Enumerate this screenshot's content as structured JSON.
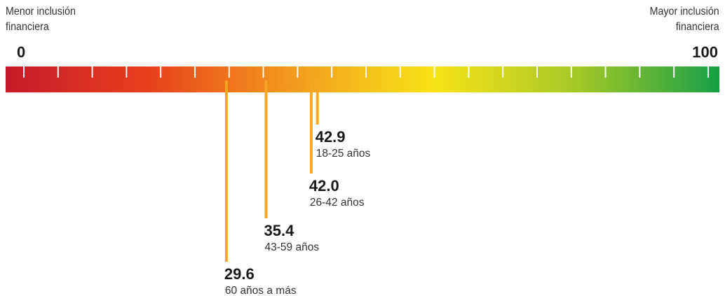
{
  "left_caption": [
    "Menor inclusión",
    "financiera"
  ],
  "right_caption": [
    "Mayor inclusión",
    "financiera"
  ],
  "chart_data": {
    "type": "scale",
    "min_label": "0",
    "max_label": "100",
    "xlim": [
      0,
      100
    ],
    "tick_step": 5,
    "gradient_colors": [
      "#c8192a",
      "#e8401c",
      "#f29a1d",
      "#f8e318",
      "#a5c827",
      "#17a046"
    ],
    "marker_color": "#f5a623",
    "markers": [
      {
        "value": 42.9,
        "label": "42.9",
        "group": "18-25 años"
      },
      {
        "value": 42.0,
        "label": "42.0",
        "group": "26-42 años"
      },
      {
        "value": 35.4,
        "label": "35.4",
        "group": "43-59 años"
      },
      {
        "value": 29.6,
        "label": "29.6",
        "group": "60 años a más"
      }
    ]
  }
}
